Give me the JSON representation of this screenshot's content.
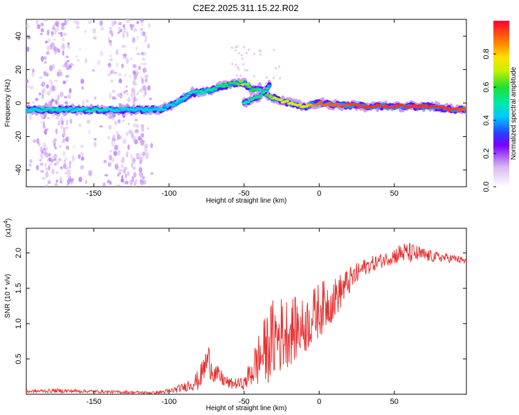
{
  "title": "C2E2.2025.311.15.22.R02",
  "chart_data": [
    {
      "type": "heatmap",
      "title": "C2E2.2025.311.15.22.R02",
      "xlabel": "Height of straight line (km)",
      "ylabel": "Frequency (Hz)",
      "xlim": [
        -195,
        98
      ],
      "ylim": [
        -50,
        50
      ],
      "x_ticks": [
        -150,
        -100,
        -50,
        0,
        50
      ],
      "y_ticks": [
        -40,
        -20,
        0,
        20,
        40
      ],
      "colorbar": {
        "label": "Normalized spectral amplitude",
        "range": [
          0,
          1
        ],
        "ticks": [
          "0.0",
          "0.2",
          "0.4",
          "0.6",
          "0.8"
        ]
      },
      "ridge": [
        {
          "x": -195,
          "y": -4,
          "amp": 0.45
        },
        {
          "x": -180,
          "y": -4,
          "amp": 0.5
        },
        {
          "x": -165,
          "y": -4,
          "amp": 0.45
        },
        {
          "x": -150,
          "y": -4,
          "amp": 0.5
        },
        {
          "x": -135,
          "y": -4,
          "amp": 0.45
        },
        {
          "x": -120,
          "y": -4,
          "amp": 0.45
        },
        {
          "x": -105,
          "y": -4,
          "amp": 0.45
        },
        {
          "x": -95,
          "y": 0,
          "amp": 0.45
        },
        {
          "x": -85,
          "y": 6,
          "amp": 0.5
        },
        {
          "x": -75,
          "y": 7,
          "amp": 0.5
        },
        {
          "x": -65,
          "y": 10,
          "amp": 0.55
        },
        {
          "x": -55,
          "y": 12,
          "amp": 0.6
        },
        {
          "x": -50,
          "y": 12,
          "amp": 0.7
        },
        {
          "x": -45,
          "y": 8,
          "amp": 0.6
        },
        {
          "x": -40,
          "y": 9,
          "amp": 0.55
        },
        {
          "x": -35,
          "y": 5,
          "amp": 0.6
        },
        {
          "x": -30,
          "y": 3,
          "amp": 0.7
        },
        {
          "x": -20,
          "y": 0,
          "amp": 0.75
        },
        {
          "x": -10,
          "y": -2,
          "amp": 0.75
        },
        {
          "x": 0,
          "y": 0,
          "amp": 0.9
        },
        {
          "x": 10,
          "y": -1,
          "amp": 0.9
        },
        {
          "x": 30,
          "y": -2,
          "amp": 0.95
        },
        {
          "x": 50,
          "y": -2,
          "amp": 0.95
        },
        {
          "x": 75,
          "y": -2,
          "amp": 0.95
        },
        {
          "x": 90,
          "y": -4,
          "amp": 0.95
        },
        {
          "x": 98,
          "y": -4,
          "amp": 0.9
        }
      ],
      "secondary_branch": [
        {
          "x": -50,
          "y": 0,
          "amp": 0.5
        },
        {
          "x": -40,
          "y": 4,
          "amp": 0.55
        },
        {
          "x": -35,
          "y": 8,
          "amp": 0.5
        },
        {
          "x": -32,
          "y": 12,
          "amp": 0.35
        }
      ]
    },
    {
      "type": "line",
      "xlabel": "Height of straight line (km)",
      "ylabel": "SNR (10 * v/v)",
      "y_multiplier": "(x10",
      "y_multiplier_exp": "4",
      "y_multiplier_close": ")",
      "xlim": [
        -195,
        98
      ],
      "ylim": [
        0,
        2.35
      ],
      "x_ticks": [
        -150,
        -100,
        -50,
        0,
        50
      ],
      "y_ticks": [
        0.5,
        1.0,
        1.5,
        2.0
      ],
      "y_tick_labels": [
        "0.5",
        "1.0",
        "1.5",
        "2.0"
      ],
      "series_color": "#e83030",
      "envelope": [
        {
          "x": -195,
          "base": 0.04,
          "amp": 0.02
        },
        {
          "x": -175,
          "base": 0.05,
          "amp": 0.03
        },
        {
          "x": -150,
          "base": 0.04,
          "amp": 0.02
        },
        {
          "x": -110,
          "base": 0.02,
          "amp": 0.02
        },
        {
          "x": -100,
          "base": 0.04,
          "amp": 0.04
        },
        {
          "x": -90,
          "base": 0.1,
          "amp": 0.06
        },
        {
          "x": -80,
          "base": 0.2,
          "amp": 0.15
        },
        {
          "x": -74,
          "base": 0.5,
          "amp": 0.25
        },
        {
          "x": -70,
          "base": 0.3,
          "amp": 0.15
        },
        {
          "x": -60,
          "base": 0.15,
          "amp": 0.08
        },
        {
          "x": -50,
          "base": 0.15,
          "amp": 0.08
        },
        {
          "x": -40,
          "base": 0.5,
          "amp": 0.4
        },
        {
          "x": -30,
          "base": 0.8,
          "amp": 0.6
        },
        {
          "x": -20,
          "base": 0.9,
          "amp": 0.5
        },
        {
          "x": -10,
          "base": 0.95,
          "amp": 0.4
        },
        {
          "x": 0,
          "base": 1.2,
          "amp": 0.4
        },
        {
          "x": 10,
          "base": 1.35,
          "amp": 0.3
        },
        {
          "x": 20,
          "base": 1.6,
          "amp": 0.2
        },
        {
          "x": 30,
          "base": 1.8,
          "amp": 0.12
        },
        {
          "x": 45,
          "base": 1.92,
          "amp": 0.1
        },
        {
          "x": 55,
          "base": 2.0,
          "amp": 0.15
        },
        {
          "x": 60,
          "base": 2.0,
          "amp": 0.15
        },
        {
          "x": 75,
          "base": 1.95,
          "amp": 0.08
        },
        {
          "x": 90,
          "base": 1.92,
          "amp": 0.06
        },
        {
          "x": 98,
          "base": 1.88,
          "amp": 0.05
        }
      ]
    }
  ]
}
